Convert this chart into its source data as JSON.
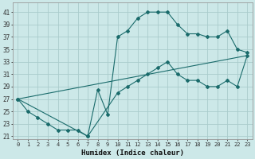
{
  "xlabel": "Humidex (Indice chaleur)",
  "xlim": [
    -0.5,
    23.5
  ],
  "ylim": [
    20.5,
    42.5
  ],
  "xticks": [
    0,
    1,
    2,
    3,
    4,
    5,
    6,
    7,
    8,
    9,
    10,
    11,
    12,
    13,
    14,
    15,
    16,
    17,
    18,
    19,
    20,
    21,
    22,
    23
  ],
  "yticks": [
    21,
    23,
    25,
    27,
    29,
    31,
    33,
    35,
    37,
    39,
    41
  ],
  "bg_color": "#cce8e8",
  "grid_color": "#aacccc",
  "line_color": "#1a6b6b",
  "line1_x": [
    0,
    1,
    2,
    3,
    4,
    5,
    6,
    7,
    8,
    9,
    10,
    11,
    12,
    13,
    14,
    15,
    16,
    17,
    18,
    19,
    20,
    21,
    22,
    23
  ],
  "line1_y": [
    27,
    25,
    24,
    23,
    22,
    22,
    22,
    21,
    28.5,
    24.5,
    37,
    38,
    40,
    41,
    41,
    41,
    39,
    37.5,
    37.5,
    37,
    37,
    38,
    35,
    34.5
  ],
  "line2_x": [
    0,
    7,
    10,
    11,
    12,
    13,
    14,
    15,
    16,
    17,
    18,
    19,
    20,
    21,
    22,
    23
  ],
  "line2_y": [
    27,
    21,
    28,
    29,
    30,
    31,
    32,
    33,
    31,
    30,
    30,
    29,
    29,
    30,
    29,
    34
  ],
  "line3_x": [
    0,
    23
  ],
  "line3_y": [
    27,
    34
  ]
}
